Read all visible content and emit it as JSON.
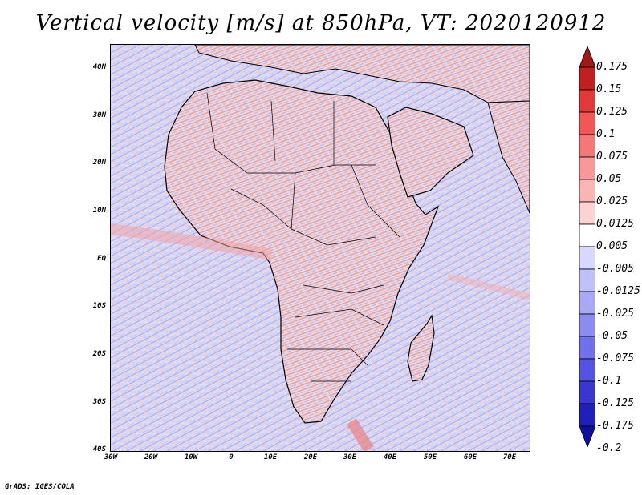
{
  "title": "Vertical velocity [m/s] at 850hPa, VT: 2020120912",
  "footer": "GrADS: IGES/COLA",
  "map": {
    "region": "Africa",
    "lon_range": [
      -30,
      75
    ],
    "lat_range": [
      -40,
      45
    ],
    "lat_labels": [
      "40N",
      "30N",
      "20N",
      "10N",
      "EQ",
      "10S",
      "20S",
      "30S",
      "40S"
    ],
    "lon_labels": [
      "30W",
      "20W",
      "10W",
      "0",
      "10E",
      "20E",
      "30E",
      "40E",
      "50E",
      "60E",
      "70E"
    ]
  },
  "colorbar": {
    "levels": [
      "0.175",
      "0.15",
      "0.125",
      "0.1",
      "0.075",
      "0.05",
      "0.025",
      "0.0125",
      "0.005",
      "-0.005",
      "-0.0125",
      "-0.025",
      "-0.05",
      "-0.075",
      "-0.1",
      "-0.125",
      "-0.175",
      "-0.2"
    ],
    "colors": [
      "#a01818",
      "#c02020",
      "#e03a3a",
      "#f05858",
      "#f47878",
      "#f89898",
      "#fbb4b4",
      "#fdd2d2",
      "#ffffff",
      "#d8d8fc",
      "#c0c0f8",
      "#a8a8f4",
      "#8c8cf0",
      "#7070e8",
      "#5454e0",
      "#3838d0",
      "#2020b8",
      "#1010a0"
    ]
  }
}
